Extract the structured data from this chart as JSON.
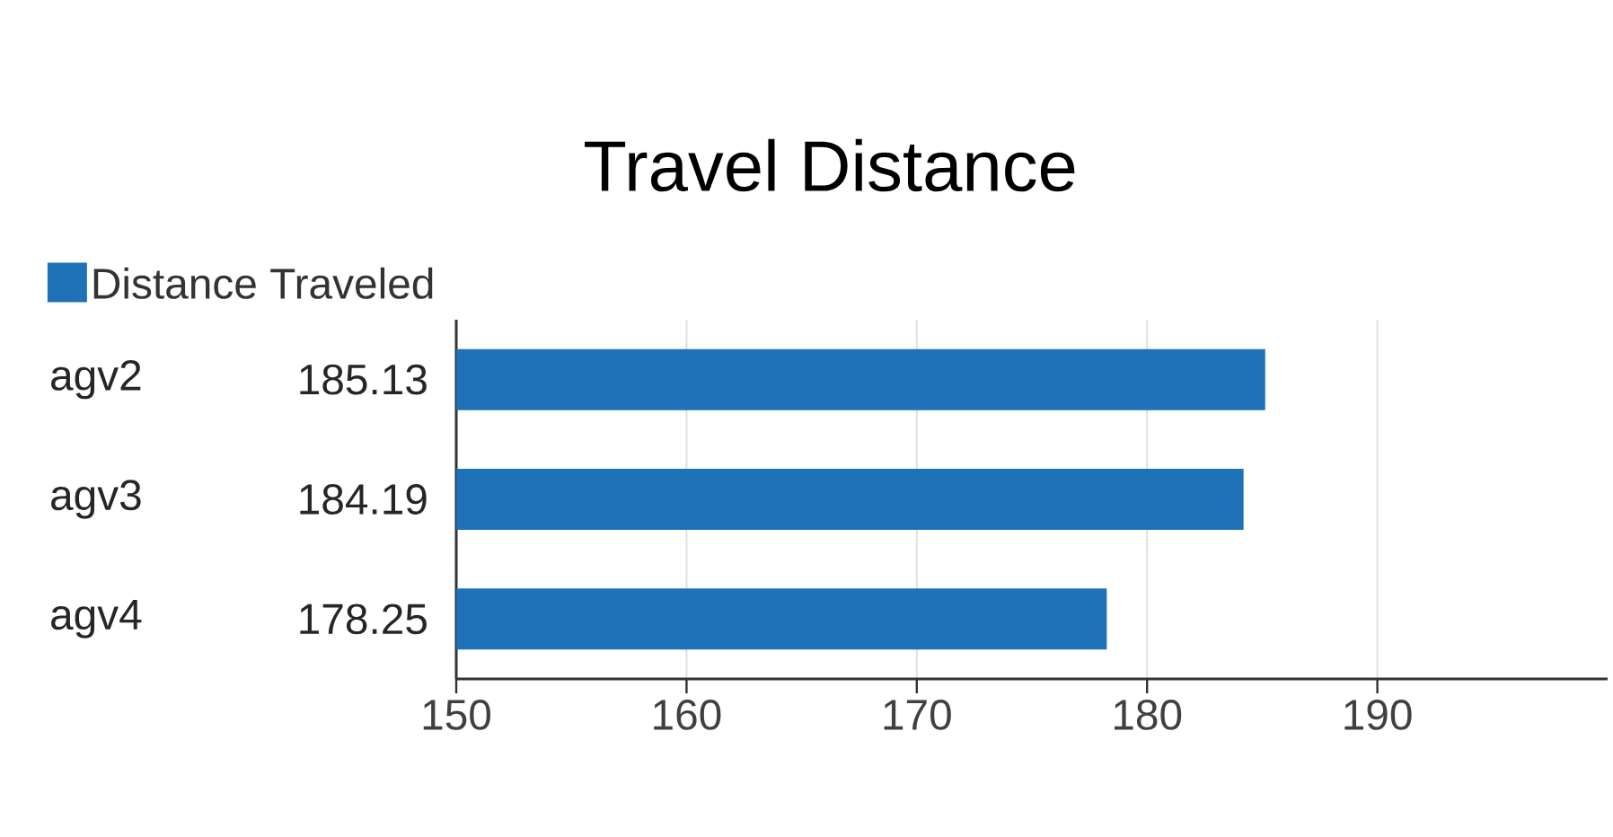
{
  "chart_data": {
    "type": "bar",
    "orientation": "horizontal",
    "title": "Travel Distance",
    "categories": [
      "agv2",
      "agv3",
      "agv4"
    ],
    "series": [
      {
        "name": "Distance Traveled",
        "color": "#1f72b8",
        "values": [
          185.13,
          184.19,
          178.25
        ]
      }
    ],
    "xlim": [
      150,
      200
    ],
    "xticks": [
      150,
      160,
      170,
      180,
      190
    ],
    "grid": "x",
    "legend": "top left",
    "data_labels": true
  }
}
